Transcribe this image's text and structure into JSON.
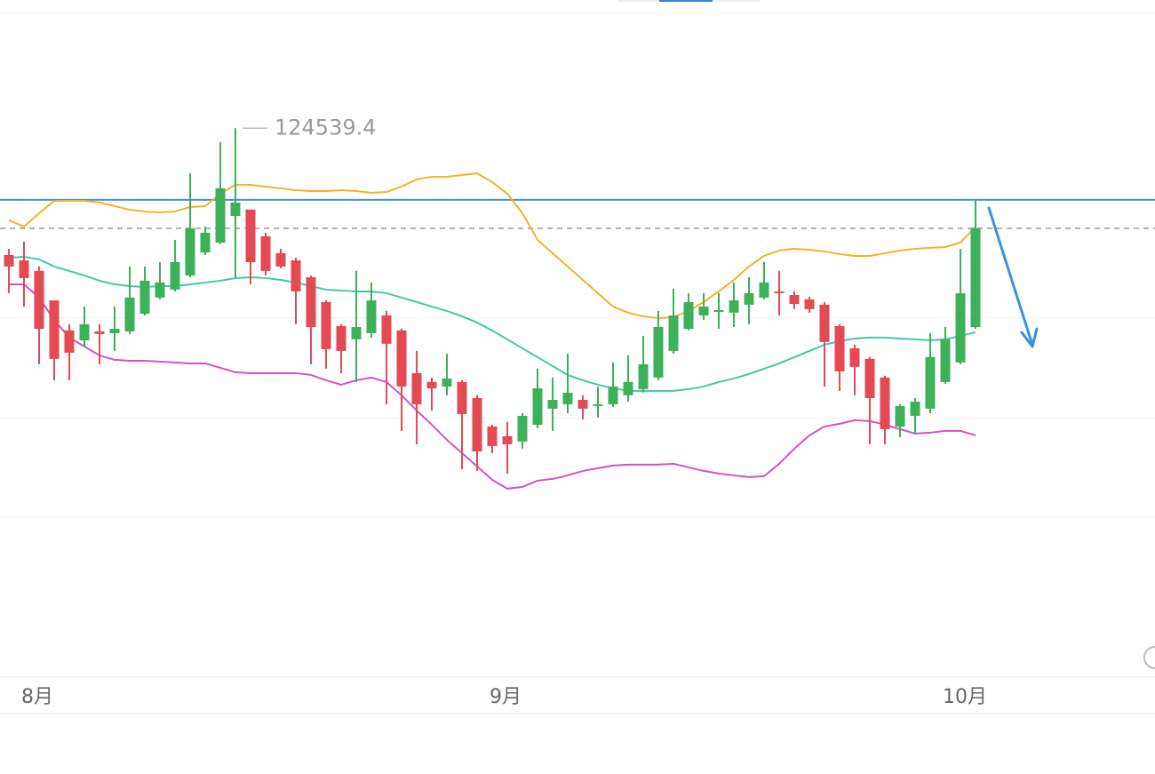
{
  "chart_data": {
    "type": "candlestick",
    "categories": [
      null,
      null,
      "8月",
      null,
      null,
      null,
      null,
      null,
      null,
      null,
      null,
      null,
      null,
      null,
      null,
      null,
      null,
      null,
      null,
      null,
      null,
      null,
      null,
      null,
      null,
      null,
      null,
      null,
      null,
      null,
      null,
      null,
      null,
      "9月",
      null,
      null,
      null,
      null,
      null,
      null,
      null,
      null,
      null,
      null,
      null,
      null,
      null,
      null,
      null,
      null,
      null,
      null,
      null,
      null,
      null,
      null,
      null,
      null,
      null,
      null,
      null,
      null,
      null,
      "10月",
      null,
      null,
      null,
      null,
      null,
      null,
      null,
      null,
      null,
      null,
      null,
      null
    ],
    "open": [
      118170,
      117900,
      117370,
      115890,
      114380,
      113880,
      114330,
      114240,
      114330,
      115220,
      116030,
      116430,
      117140,
      118300,
      118790,
      120130,
      120450,
      119110,
      118260,
      117900,
      117050,
      115800,
      114600,
      113930,
      114240,
      115130,
      114380,
      112230,
      111790,
      111560,
      111790,
      110980,
      109550,
      109060,
      108800,
      109640,
      110450,
      110670,
      110890,
      110630,
      110670,
      111120,
      111430,
      112010,
      113350,
      114460,
      115130,
      115360,
      115270,
      115670,
      116030,
      116340,
      116160,
      115940,
      115670,
      114600,
      113480,
      112950,
      112010,
      109550,
      110090,
      110450,
      111790,
      112770,
      114550,
      null,
      null,
      null,
      null,
      null,
      null,
      null,
      null,
      null,
      null,
      null
    ],
    "high": [
      118480,
      118840,
      117590,
      115890,
      114690,
      115580,
      114690,
      115580,
      117590,
      117590,
      117810,
      118930,
      122280,
      119600,
      123840,
      124539.4,
      120450,
      119290,
      118480,
      118030,
      117140,
      115890,
      114690,
      117370,
      116790,
      115360,
      114460,
      113350,
      112010,
      113210,
      111880,
      111120,
      109640,
      109780,
      110220,
      112460,
      112010,
      113210,
      111120,
      111560,
      112770,
      113130,
      114110,
      115360,
      116470,
      116250,
      116250,
      116250,
      116790,
      117050,
      117810,
      117370,
      116340,
      116070,
      115800,
      114690,
      113660,
      113040,
      112100,
      110670,
      110980,
      114240,
      114550,
      118480,
      120940,
      null,
      null,
      null,
      null,
      null,
      null,
      null,
      null,
      null,
      null,
      null
    ],
    "low": [
      116250,
      115580,
      112680,
      111880,
      111880,
      113570,
      112680,
      113350,
      114200,
      115130,
      115940,
      116340,
      117050,
      118170,
      118710,
      117050,
      116700,
      117140,
      117500,
      114690,
      112680,
      112460,
      112230,
      111790,
      114020,
      110670,
      109330,
      108660,
      110360,
      111120,
      107410,
      107320,
      108220,
      107190,
      108440,
      109470,
      109330,
      110220,
      109910,
      110000,
      110540,
      110800,
      111250,
      111880,
      113210,
      114380,
      114910,
      114460,
      114550,
      114690,
      115940,
      115130,
      115450,
      115270,
      111560,
      111340,
      111120,
      108660,
      108660,
      109020,
      109200,
      110220,
      111700,
      112680,
      114460,
      null,
      null,
      null,
      null,
      null,
      null,
      null,
      null,
      null,
      null,
      null
    ],
    "close": [
      117590,
      117010,
      114460,
      112950,
      113260,
      114690,
      114200,
      114460,
      116030,
      116880,
      116790,
      117810,
      119510,
      119290,
      121520,
      120800,
      117810,
      117370,
      117590,
      116340,
      114550,
      113440,
      113350,
      114550,
      115890,
      113710,
      111560,
      110670,
      111470,
      111960,
      110180,
      108300,
      108570,
      108660,
      110090,
      111470,
      110890,
      111250,
      110450,
      110670,
      111560,
      111790,
      112680,
      114550,
      115130,
      115800,
      115580,
      115400,
      115890,
      116250,
      116790,
      116250,
      115710,
      115450,
      113800,
      112320,
      112550,
      110980,
      109420,
      110580,
      110800,
      113040,
      113930,
      116250,
      119510,
      null,
      null,
      null,
      null,
      null,
      null,
      null,
      null,
      null,
      null,
      null
    ],
    "up_color": "#3cb05b",
    "down_color": "#e34a53",
    "lines": [
      {
        "color": "#f0b429",
        "values": [
          119910,
          119598,
          120267,
          120892,
          120892,
          120892,
          120803,
          120625,
          120446,
          120357,
          120312,
          120357,
          120580,
          120625,
          121249,
          121696,
          121696,
          121607,
          121517,
          121428,
          121383,
          121383,
          121428,
          121383,
          121294,
          121339,
          121607,
          121964,
          122098,
          122098,
          122187,
          122276,
          121830,
          121249,
          120267,
          118928,
          118259,
          117589,
          116919,
          116250,
          115580,
          115268,
          115089,
          115000,
          115045,
          115357,
          115804,
          116339,
          116919,
          117589,
          118125,
          118393,
          118482,
          118437,
          118348,
          118214,
          118125,
          118125,
          118259,
          118393,
          118482,
          118527,
          118571,
          118794,
          119598,
          null,
          null,
          null,
          null,
          null,
          null,
          null,
          null,
          null,
          null,
          null
        ]
      },
      {
        "color": "#45c6a8",
        "values": [
          118035,
          118080,
          117946,
          117589,
          117366,
          117143,
          116875,
          116696,
          116607,
          116562,
          116607,
          116607,
          116696,
          116786,
          116875,
          117009,
          117053,
          117009,
          116919,
          116786,
          116607,
          116428,
          116384,
          116339,
          116339,
          116250,
          116027,
          115804,
          115580,
          115357,
          115089,
          114777,
          114375,
          113929,
          113482,
          113036,
          112589,
          112143,
          111875,
          111652,
          111473,
          111340,
          111340,
          111340,
          111340,
          111429,
          111563,
          111786,
          111964,
          112187,
          112455,
          112723,
          113036,
          113348,
          113661,
          113839,
          113973,
          114018,
          114018,
          113973,
          113929,
          113884,
          113929,
          114107,
          114286,
          null,
          null,
          null,
          null,
          null,
          null,
          null,
          null,
          null,
          null,
          null
        ]
      },
      {
        "color": "#d64fc7",
        "values": [
          116696,
          116696,
          116027,
          114911,
          114018,
          113572,
          113125,
          112902,
          112857,
          112857,
          112812,
          112768,
          112723,
          112723,
          112500,
          112277,
          112232,
          112232,
          112232,
          112232,
          112143,
          111875,
          111652,
          111875,
          112009,
          111786,
          111116,
          110357,
          109643,
          108884,
          108215,
          107545,
          106875,
          106429,
          106518,
          106830,
          106920,
          107098,
          107322,
          107456,
          107590,
          107634,
          107634,
          107634,
          107679,
          107500,
          107322,
          107188,
          107098,
          107009,
          107054,
          107679,
          108438,
          109108,
          109554,
          109688,
          109866,
          109822,
          109643,
          109420,
          109197,
          109241,
          109331,
          109331,
          109108,
          null,
          null,
          null,
          null,
          null,
          null,
          null,
          null,
          null,
          null,
          null
        ]
      }
    ],
    "hlines": [
      {
        "value": 120940,
        "color": "#4a90d9",
        "dashed": false
      },
      {
        "value": 119510,
        "color": "#9a9a9a",
        "dashed": true
      }
    ],
    "ylim": [
      97050,
      130980
    ]
  }
}
